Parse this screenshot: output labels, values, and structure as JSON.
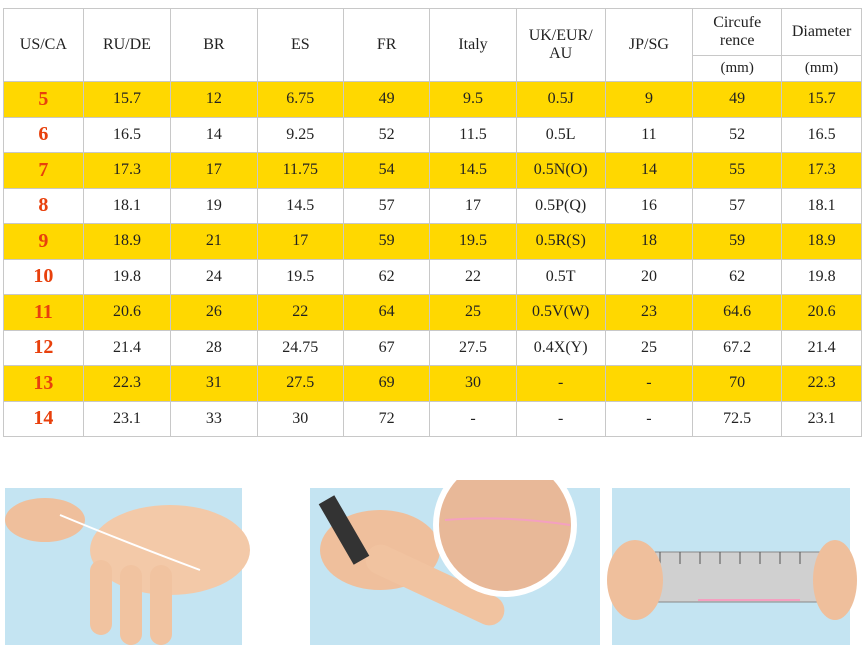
{
  "table": {
    "columns": [
      "US/CA",
      "RU/DE",
      "BR",
      "ES",
      "FR",
      "Italy",
      "UK/EUR/ AU",
      "JP/SG",
      "Circufe rence",
      "Diameter"
    ],
    "units": [
      "(mm)",
      "(mm)"
    ],
    "rows": [
      [
        "5",
        "15.7",
        "12",
        "6.75",
        "49",
        "9.5",
        "0.5J",
        "9",
        "49",
        "15.7"
      ],
      [
        "6",
        "16.5",
        "14",
        "9.25",
        "52",
        "11.5",
        "0.5L",
        "11",
        "52",
        "16.5"
      ],
      [
        "7",
        "17.3",
        "17",
        "11.75",
        "54",
        "14.5",
        "0.5N(O)",
        "14",
        "55",
        "17.3"
      ],
      [
        "8",
        "18.1",
        "19",
        "14.5",
        "57",
        "17",
        "0.5P(Q)",
        "16",
        "57",
        "18.1"
      ],
      [
        "9",
        "18.9",
        "21",
        "17",
        "59",
        "19.5",
        "0.5R(S)",
        "18",
        "59",
        "18.9"
      ],
      [
        "10",
        "19.8",
        "24",
        "19.5",
        "62",
        "22",
        "0.5T",
        "20",
        "62",
        "19.8"
      ],
      [
        "11",
        "20.6",
        "26",
        "22",
        "64",
        "25",
        "0.5V(W)",
        "23",
        "64.6",
        "20.6"
      ],
      [
        "12",
        "21.4",
        "28",
        "24.75",
        "67",
        "27.5",
        "0.4X(Y)",
        "25",
        "67.2",
        "21.4"
      ],
      [
        "13",
        "22.3",
        "31",
        "27.5",
        "69",
        "30",
        "-",
        "-",
        "70",
        "22.3"
      ],
      [
        "14",
        "23.1",
        "33",
        "30",
        "72",
        "-",
        "-",
        "-",
        "72.5",
        "23.1"
      ]
    ]
  }
}
